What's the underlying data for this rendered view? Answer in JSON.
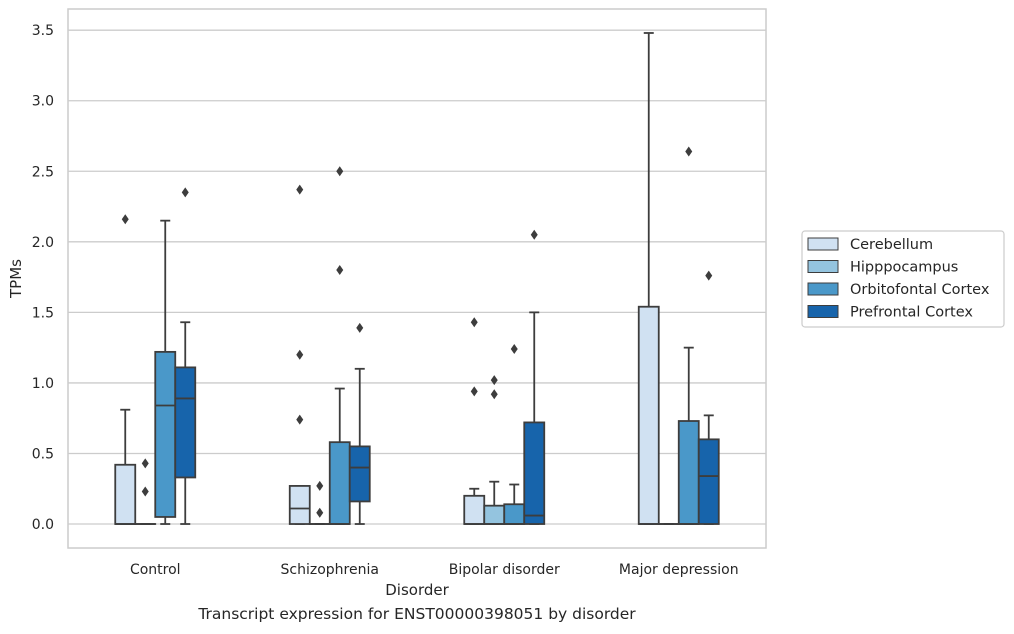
{
  "caption": "Transcript expression for ENST00000398051 by disorder",
  "chart_data": {
    "type": "boxplot",
    "title": "",
    "xlabel": "Disorder",
    "ylabel": "TPMs",
    "ylim": [
      -0.17,
      3.65
    ],
    "yticks": [
      0.0,
      0.5,
      1.0,
      1.5,
      2.0,
      2.5,
      3.0,
      3.5
    ],
    "ytick_labels": [
      "0.0",
      "0.5",
      "1.0",
      "1.5",
      "2.0",
      "2.5",
      "3.0",
      "3.5"
    ],
    "grid": "horizontal",
    "legend_position": "right",
    "categories": [
      "Control",
      "Schizophrenia",
      "Bipolar disorder",
      "Major depression"
    ],
    "series": [
      {
        "name": "Cerebellum",
        "color": "#d0e1f2",
        "boxes": [
          {
            "whislo": 0.0,
            "q1": 0.0,
            "med": 0.0,
            "q3": 0.42,
            "whishi": 0.81,
            "fliers": [
              2.16
            ]
          },
          {
            "whislo": 0.0,
            "q1": 0.0,
            "med": 0.11,
            "q3": 0.27,
            "whishi": 0.27,
            "fliers": [
              0.74,
              1.2,
              2.37
            ]
          },
          {
            "whislo": 0.0,
            "q1": 0.0,
            "med": 0.0,
            "q3": 0.2,
            "whishi": 0.25,
            "fliers": [
              0.94,
              1.43
            ]
          },
          {
            "whislo": 0.0,
            "q1": 0.0,
            "med": 0.0,
            "q3": 1.54,
            "whishi": 3.48,
            "fliers": []
          }
        ]
      },
      {
        "name": "Hipppocampus",
        "color": "#94c4df",
        "boxes": [
          {
            "whislo": 0.0,
            "q1": 0.0,
            "med": 0.0,
            "q3": 0.0,
            "whishi": 0.0,
            "fliers": [
              0.23,
              0.43
            ]
          },
          {
            "whislo": 0.0,
            "q1": 0.0,
            "med": 0.0,
            "q3": 0.0,
            "whishi": 0.0,
            "fliers": [
              0.08,
              0.27
            ]
          },
          {
            "whislo": 0.0,
            "q1": 0.0,
            "med": 0.0,
            "q3": 0.13,
            "whishi": 0.3,
            "fliers": [
              0.92,
              1.02
            ]
          },
          {
            "whislo": 0.0,
            "q1": 0.0,
            "med": 0.0,
            "q3": 0.0,
            "whishi": 0.0,
            "fliers": []
          }
        ]
      },
      {
        "name": "Orbitofontal Cortex",
        "color": "#4a98c9",
        "boxes": [
          {
            "whislo": 0.0,
            "q1": 0.05,
            "med": 0.84,
            "q3": 1.22,
            "whishi": 2.15,
            "fliers": []
          },
          {
            "whislo": 0.0,
            "q1": 0.0,
            "med": 0.0,
            "q3": 0.58,
            "whishi": 0.96,
            "fliers": [
              1.8,
              2.5
            ]
          },
          {
            "whislo": 0.0,
            "q1": 0.0,
            "med": 0.0,
            "q3": 0.14,
            "whishi": 0.28,
            "fliers": [
              1.24
            ]
          },
          {
            "whislo": 0.0,
            "q1": 0.0,
            "med": 0.0,
            "q3": 0.73,
            "whishi": 1.25,
            "fliers": [
              2.64
            ]
          }
        ]
      },
      {
        "name": "Prefrontal Cortex",
        "color": "#1764ab",
        "boxes": [
          {
            "whislo": 0.0,
            "q1": 0.33,
            "med": 0.89,
            "q3": 1.11,
            "whishi": 1.43,
            "fliers": [
              2.35
            ]
          },
          {
            "whislo": 0.0,
            "q1": 0.16,
            "med": 0.4,
            "q3": 0.55,
            "whishi": 1.1,
            "fliers": [
              1.39
            ]
          },
          {
            "whislo": 0.0,
            "q1": 0.0,
            "med": 0.06,
            "q3": 0.72,
            "whishi": 1.5,
            "fliers": [
              2.05
            ]
          },
          {
            "whislo": 0.0,
            "q1": 0.0,
            "med": 0.34,
            "q3": 0.6,
            "whishi": 0.77,
            "fliers": [
              1.76
            ]
          }
        ]
      }
    ]
  }
}
